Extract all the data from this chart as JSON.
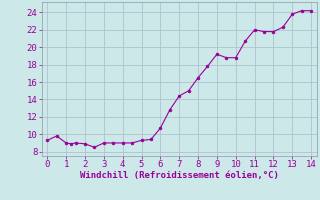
{
  "x": [
    0,
    0.5,
    1,
    1.25,
    1.5,
    2,
    2.5,
    3,
    3.5,
    4,
    4.5,
    5,
    5.5,
    6,
    6.5,
    7,
    7.5,
    8,
    8.5,
    9,
    9.5,
    10,
    10.5,
    11,
    11.5,
    12,
    12.5,
    13,
    13.5,
    14
  ],
  "y": [
    9.3,
    9.8,
    9.0,
    8.9,
    9.0,
    8.9,
    8.5,
    9.0,
    9.0,
    9.0,
    9.0,
    9.3,
    9.4,
    10.7,
    12.8,
    14.4,
    15.0,
    16.5,
    17.8,
    19.2,
    18.8,
    18.8,
    20.7,
    22.0,
    21.8,
    21.8,
    22.3,
    23.8,
    24.2,
    24.2
  ],
  "line_color": "#990099",
  "marker_color": "#990099",
  "bg_color": "#cce8e8",
  "grid_color": "#aabbcc",
  "xlabel": "Windchill (Refroidissement éolien,°C)",
  "xlabel_color": "#990099",
  "tick_color": "#990099",
  "xlim": [
    -0.3,
    14.3
  ],
  "ylim": [
    7.5,
    25.2
  ],
  "xticks": [
    0,
    1,
    2,
    3,
    4,
    5,
    6,
    7,
    8,
    9,
    10,
    11,
    12,
    13,
    14
  ],
  "yticks": [
    8,
    10,
    12,
    14,
    16,
    18,
    20,
    22,
    24
  ]
}
